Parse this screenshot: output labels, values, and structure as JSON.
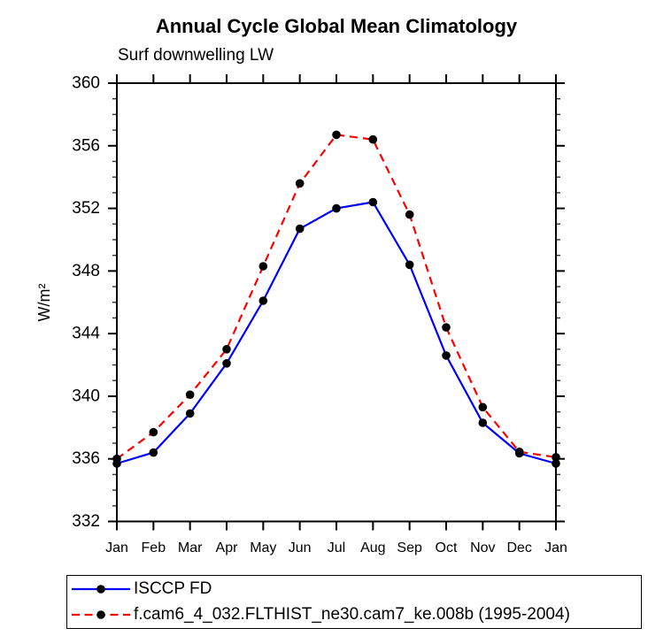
{
  "title": "Annual Cycle Global Mean Climatology",
  "subtitle": "Surf downwelling LW",
  "y_axis": {
    "title": "W/m²"
  },
  "legend": {
    "entries": [
      {
        "label": "ISCCP FD",
        "color": "#0000ff",
        "style": "solid"
      },
      {
        "label": "f.cam6_4_032.FLTHIST_ne30.cam7_ke.008b (1995-2004)",
        "color": "#ff0000",
        "style": "dashed"
      }
    ],
    "marker_color": "#000000"
  },
  "chart_data": {
    "type": "line",
    "title": "Annual Cycle Global Mean Climatology",
    "subtitle": "Surf downwelling LW",
    "ylabel": "W/m²",
    "categories": [
      "Jan",
      "Feb",
      "Mar",
      "Apr",
      "May",
      "Jun",
      "Jul",
      "Aug",
      "Sep",
      "Oct",
      "Nov",
      "Dec",
      "Jan"
    ],
    "series": [
      {
        "name": "ISCCP FD",
        "color": "#0000ff",
        "line_style": "solid",
        "marker": "circle",
        "marker_color": "#000000",
        "values": [
          335.7,
          336.4,
          338.9,
          342.1,
          346.1,
          350.7,
          352.0,
          352.4,
          348.4,
          342.6,
          338.3,
          336.35,
          335.7
        ]
      },
      {
        "name": "f.cam6_4_032.FLTHIST_ne30.cam7_ke.008b (1995-2004)",
        "color": "#ff0000",
        "line_style": "dashed",
        "marker": "circle",
        "marker_color": "#000000",
        "values": [
          336.0,
          337.7,
          340.1,
          343.0,
          348.3,
          353.6,
          356.7,
          356.4,
          351.6,
          344.4,
          339.3,
          336.45,
          336.1
        ]
      }
    ],
    "ylim": [
      332,
      360
    ],
    "y_major_ticks": [
      332,
      336,
      340,
      344,
      348,
      352,
      356,
      360
    ],
    "y_minor_step": 1,
    "x_minor_ticks": false,
    "grid": false,
    "legend_position": "bottom",
    "frame_color": "#000000"
  }
}
